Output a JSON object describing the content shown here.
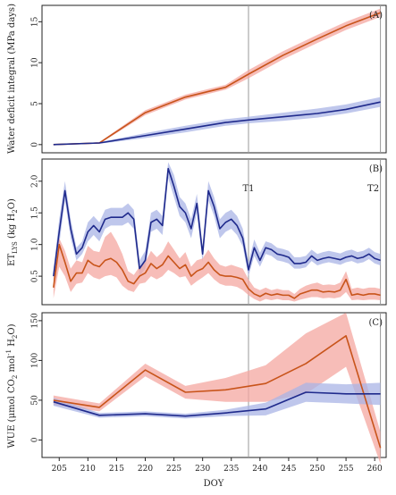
{
  "colors": {
    "orange": "#c8541a",
    "orange_band": "#f4a7a0",
    "blue": "#1f2a8c",
    "blue_band": "#a9b4e6",
    "vline": "#9a9a9a"
  },
  "xaxis": {
    "label": "DOY",
    "ticks": [
      "205",
      "210",
      "215",
      "220",
      "225",
      "230",
      "235",
      "240",
      "245",
      "250",
      "255",
      "260"
    ]
  },
  "chart_data": [
    {
      "type": "line",
      "panel_label": "(A)",
      "ylabel": "Water deficit integral (MPa days)",
      "yticks": [
        "0",
        "5",
        "10",
        "15"
      ],
      "xlim": [
        202,
        262
      ],
      "ylim": [
        -1,
        17
      ],
      "vlines": [
        {
          "x": 238,
          "label": ""
        },
        {
          "x": 261,
          "label": ""
        }
      ],
      "series": [
        {
          "color": "orange",
          "x": [
            204,
            212,
            220,
            227,
            234,
            238,
            244,
            250,
            255,
            261
          ],
          "values": [
            0,
            0.2,
            3.9,
            5.8,
            7,
            8.6,
            10.9,
            12.9,
            14.5,
            16.1
          ],
          "lower": [
            0,
            0.1,
            3.6,
            5.5,
            6.7,
            8.1,
            10.4,
            12.4,
            14.0,
            15.6
          ],
          "upper": [
            0,
            0.3,
            4.2,
            6.1,
            7.3,
            9.1,
            11.4,
            13.4,
            15.0,
            16.6
          ]
        },
        {
          "color": "blue",
          "x": [
            204,
            212,
            220,
            227,
            234,
            238,
            244,
            250,
            255,
            261
          ],
          "values": [
            0,
            0.2,
            1.1,
            1.9,
            2.7,
            3.0,
            3.4,
            3.8,
            4.3,
            5.2
          ],
          "lower": [
            0,
            0.1,
            0.8,
            1.5,
            2.3,
            2.6,
            2.9,
            3.3,
            3.8,
            4.6
          ],
          "upper": [
            0,
            0.3,
            1.4,
            2.3,
            3.1,
            3.4,
            3.9,
            4.4,
            4.9,
            5.8
          ]
        }
      ]
    },
    {
      "type": "line",
      "panel_label": "(B)",
      "ylabel": "ET_LYS (kg H2O)",
      "yticks": [
        "0.5",
        "1.0",
        "1.5",
        "2.0"
      ],
      "xlim": [
        202,
        262
      ],
      "ylim": [
        0.05,
        2.35
      ],
      "vlines": [
        {
          "x": 238,
          "label": "T1"
        },
        {
          "x": 261,
          "label": "T2"
        }
      ],
      "series": [
        {
          "color": "blue",
          "x": [
            204,
            205,
            206,
            207,
            208,
            209,
            210,
            211,
            212,
            213,
            214,
            215,
            216,
            217,
            218,
            219,
            220,
            221,
            222,
            223,
            224,
            225,
            226,
            227,
            228,
            229,
            230,
            231,
            232,
            233,
            234,
            235,
            236,
            237,
            238,
            239,
            240,
            241,
            242,
            243,
            244,
            245,
            246,
            247,
            248,
            249,
            250,
            251,
            252,
            253,
            254,
            255,
            256,
            257,
            258,
            259,
            260,
            261
          ],
          "values": [
            0.5,
            1.2,
            1.85,
            1.25,
            0.85,
            0.95,
            1.2,
            1.3,
            1.2,
            1.4,
            1.43,
            1.43,
            1.43,
            1.5,
            1.4,
            0.62,
            0.75,
            1.35,
            1.4,
            1.3,
            2.2,
            1.92,
            1.6,
            1.5,
            1.25,
            1.65,
            0.85,
            1.85,
            1.6,
            1.25,
            1.35,
            1.4,
            1.3,
            1.1,
            0.6,
            0.95,
            0.75,
            0.95,
            0.92,
            0.85,
            0.83,
            0.8,
            0.7,
            0.7,
            0.72,
            0.82,
            0.75,
            0.78,
            0.8,
            0.78,
            0.76,
            0.8,
            0.82,
            0.78,
            0.8,
            0.85,
            0.78,
            0.75
          ],
          "lower": [
            0.4,
            1.0,
            1.7,
            1.1,
            0.75,
            0.85,
            1.05,
            1.15,
            1.05,
            1.25,
            1.3,
            1.3,
            1.3,
            1.35,
            1.25,
            0.5,
            0.62,
            1.2,
            1.25,
            1.15,
            2.05,
            1.75,
            1.45,
            1.35,
            1.1,
            1.5,
            0.72,
            1.7,
            1.45,
            1.1,
            1.2,
            1.25,
            1.15,
            0.97,
            0.5,
            0.82,
            0.65,
            0.85,
            0.82,
            0.75,
            0.73,
            0.7,
            0.62,
            0.62,
            0.64,
            0.74,
            0.67,
            0.7,
            0.72,
            0.7,
            0.68,
            0.72,
            0.74,
            0.7,
            0.72,
            0.77,
            0.7,
            0.67
          ],
          "upper": [
            0.6,
            1.4,
            2.0,
            1.4,
            0.95,
            1.05,
            1.35,
            1.45,
            1.35,
            1.55,
            1.58,
            1.58,
            1.58,
            1.65,
            1.55,
            0.75,
            0.9,
            1.5,
            1.55,
            1.45,
            2.3,
            2.1,
            1.75,
            1.65,
            1.4,
            1.8,
            0.98,
            2.0,
            1.75,
            1.4,
            1.5,
            1.55,
            1.45,
            1.25,
            0.72,
            1.08,
            0.87,
            1.05,
            1.02,
            0.95,
            0.93,
            0.9,
            0.8,
            0.8,
            0.82,
            0.92,
            0.85,
            0.88,
            0.9,
            0.88,
            0.86,
            0.9,
            0.92,
            0.88,
            0.9,
            0.95,
            0.88,
            0.85
          ]
        },
        {
          "color": "orange",
          "x": [
            204,
            205,
            206,
            207,
            208,
            209,
            210,
            211,
            212,
            213,
            214,
            215,
            216,
            217,
            218,
            219,
            220,
            221,
            222,
            223,
            224,
            225,
            226,
            227,
            228,
            229,
            230,
            231,
            232,
            233,
            234,
            235,
            236,
            237,
            238,
            239,
            240,
            241,
            242,
            243,
            244,
            245,
            246,
            247,
            248,
            249,
            250,
            251,
            252,
            253,
            254,
            255,
            256,
            257,
            258,
            259,
            260,
            261
          ],
          "values": [
            0.32,
            1.0,
            0.72,
            0.42,
            0.55,
            0.55,
            0.75,
            0.68,
            0.65,
            0.75,
            0.78,
            0.72,
            0.6,
            0.42,
            0.38,
            0.5,
            0.55,
            0.7,
            0.62,
            0.68,
            0.82,
            0.72,
            0.62,
            0.68,
            0.5,
            0.58,
            0.62,
            0.72,
            0.6,
            0.52,
            0.5,
            0.5,
            0.48,
            0.45,
            0.3,
            0.22,
            0.18,
            0.23,
            0.2,
            0.22,
            0.2,
            0.2,
            0.15,
            0.22,
            0.25,
            0.28,
            0.28,
            0.25,
            0.26,
            0.25,
            0.28,
            0.45,
            0.2,
            0.22,
            0.2,
            0.22,
            0.22,
            0.2
          ],
          "lower": [
            0.15,
            0.65,
            0.5,
            0.25,
            0.38,
            0.4,
            0.55,
            0.48,
            0.45,
            0.5,
            0.52,
            0.48,
            0.35,
            0.28,
            0.25,
            0.38,
            0.4,
            0.5,
            0.45,
            0.5,
            0.6,
            0.55,
            0.48,
            0.5,
            0.35,
            0.42,
            0.48,
            0.55,
            0.45,
            0.38,
            0.35,
            0.35,
            0.33,
            0.28,
            0.2,
            0.14,
            0.1,
            0.14,
            0.12,
            0.14,
            0.12,
            0.12,
            0.1,
            0.13,
            0.15,
            0.17,
            0.17,
            0.15,
            0.16,
            0.15,
            0.17,
            0.25,
            0.12,
            0.13,
            0.12,
            0.13,
            0.13,
            0.12
          ],
          "upper": [
            0.5,
            1.1,
            0.9,
            0.62,
            0.75,
            0.72,
            0.98,
            0.9,
            0.88,
            1.12,
            1.2,
            1.05,
            0.85,
            0.58,
            0.52,
            0.65,
            0.72,
            0.9,
            0.8,
            0.88,
            1.05,
            0.92,
            0.78,
            0.88,
            0.65,
            0.75,
            0.78,
            0.92,
            0.78,
            0.68,
            0.65,
            0.68,
            0.65,
            0.62,
            0.45,
            0.32,
            0.28,
            0.32,
            0.28,
            0.3,
            0.28,
            0.28,
            0.22,
            0.3,
            0.35,
            0.38,
            0.4,
            0.36,
            0.37,
            0.36,
            0.4,
            0.58,
            0.3,
            0.32,
            0.3,
            0.32,
            0.32,
            0.3
          ]
        }
      ]
    },
    {
      "type": "line",
      "panel_label": "(C)",
      "ylabel": "WUE (μmol CO2 mol-1 H2O)",
      "yticks": [
        "0",
        "50",
        "100",
        "150"
      ],
      "xlim": [
        202,
        262
      ],
      "ylim": [
        -22,
        160
      ],
      "vlines": [
        {
          "x": 238,
          "label": ""
        },
        {
          "x": 261,
          "label": ""
        }
      ],
      "series": [
        {
          "color": "orange",
          "x": [
            204,
            212,
            220,
            227,
            234,
            241,
            248,
            255,
            261
          ],
          "values": [
            50,
            41,
            88,
            60,
            63,
            71,
            96,
            131,
            -10
          ],
          "lower": [
            44,
            36,
            80,
            52,
            48,
            48,
            58,
            92,
            -30
          ],
          "upper": [
            56,
            46,
            96,
            68,
            78,
            94,
            134,
            160,
            10
          ]
        },
        {
          "color": "blue",
          "x": [
            204,
            212,
            220,
            227,
            234,
            241,
            248,
            255,
            261
          ],
          "values": [
            48,
            31,
            33,
            30,
            34,
            39,
            60,
            58,
            58
          ],
          "lower": [
            43,
            28,
            30,
            27,
            30,
            31,
            48,
            46,
            44
          ],
          "upper": [
            53,
            34,
            36,
            33,
            38,
            47,
            72,
            70,
            72
          ]
        }
      ]
    }
  ]
}
